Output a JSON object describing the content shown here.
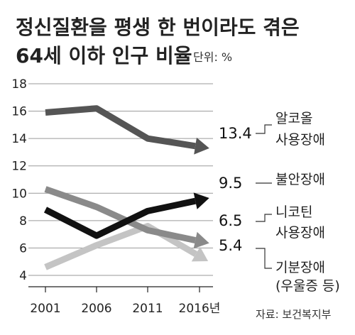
{
  "chart_data": {
    "type": "line",
    "title_lines": [
      "정신질환을 평생 한 번이라도 겪은",
      "64세 이하 인구 비율"
    ],
    "unit": "단위: %",
    "source": "자료: 보건복지부",
    "x": [
      2001,
      2006,
      2011,
      2016
    ],
    "x_tick_labels": [
      "2001",
      "2006",
      "2011",
      "2016년"
    ],
    "ylim": [
      4,
      18
    ],
    "y_ticks": [
      4,
      6,
      8,
      10,
      12,
      14,
      16,
      18
    ],
    "grid": "horizontal",
    "series": [
      {
        "name_lines": [
          "알코올",
          "사용장애"
        ],
        "values": [
          15.9,
          16.2,
          14.0,
          13.4
        ],
        "end_label": "13.4",
        "color": "#555555"
      },
      {
        "name_lines": [
          "불안장애"
        ],
        "values": [
          8.8,
          6.9,
          8.7,
          9.5
        ],
        "end_label": "9.5",
        "color": "#111111"
      },
      {
        "name_lines": [
          "니코틴",
          "사용장애"
        ],
        "values": [
          10.3,
          9.0,
          7.3,
          6.5
        ],
        "end_label": "6.5",
        "color": "#8a8a8a"
      },
      {
        "name_lines": [
          "기분장애",
          "(우울증 등)"
        ],
        "values": [
          4.6,
          6.2,
          7.6,
          5.4
        ],
        "end_label": "5.4",
        "color": "#c4c4c4"
      }
    ]
  }
}
